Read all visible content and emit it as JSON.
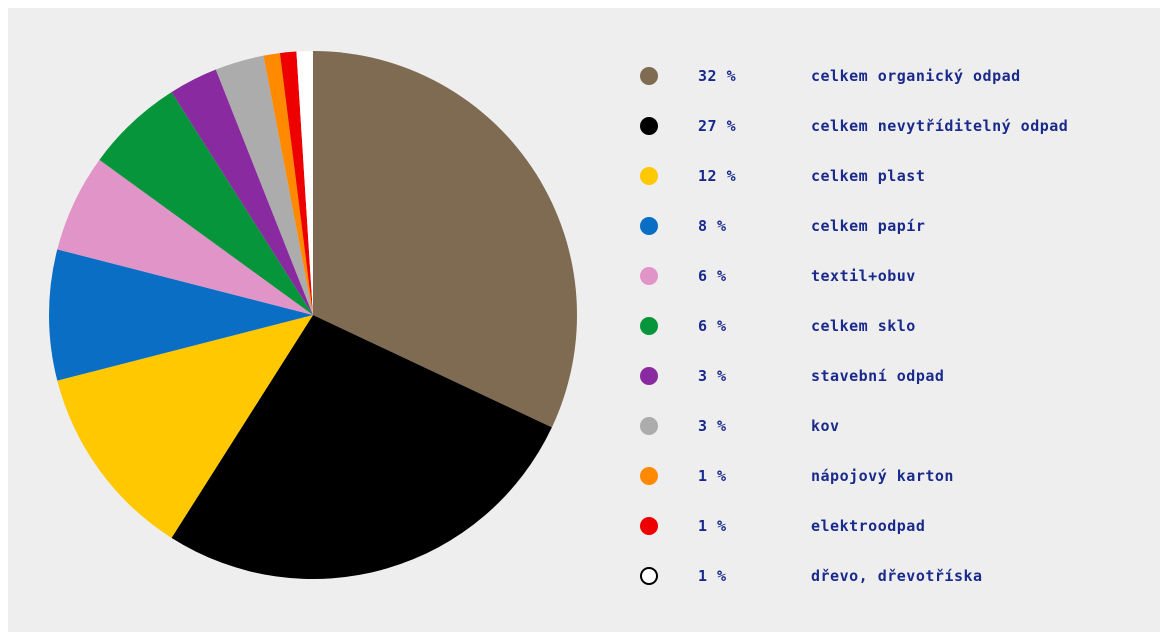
{
  "chart_data": {
    "type": "pie",
    "title": "",
    "slices": [
      {
        "value_pct": 32,
        "value_label": "32 %",
        "label": "celkem organický odpad",
        "color": "#7f6a52"
      },
      {
        "value_pct": 27,
        "value_label": "27 %",
        "label": "celkem nevytříditelný odpad",
        "color": "#000000"
      },
      {
        "value_pct": 12,
        "value_label": "12 %",
        "label": "celkem plast",
        "color": "#ffc800"
      },
      {
        "value_pct": 8,
        "value_label": "8 %",
        "label": "celkem papír",
        "color": "#0a6ec4"
      },
      {
        "value_pct": 6,
        "value_label": "6 %",
        "label": "textil+obuv",
        "color": "#e194c8"
      },
      {
        "value_pct": 6,
        "value_label": "6 %",
        "label": "celkem sklo",
        "color": "#06953a"
      },
      {
        "value_pct": 3,
        "value_label": "3 %",
        "label": "stavební odpad",
        "color": "#8a2aa0"
      },
      {
        "value_pct": 3,
        "value_label": "3 %",
        "label": "kov",
        "color": "#acacac"
      },
      {
        "value_pct": 1,
        "value_label": "1 %",
        "label": "nápojový karton",
        "color": "#ff8a00"
      },
      {
        "value_pct": 1,
        "value_label": "1 %",
        "label": "elektroodpad",
        "color": "#ee0000"
      },
      {
        "value_pct": 1,
        "value_label": "1 %",
        "label": "dřevo, dřevotříska",
        "color": "#ffffff"
      }
    ],
    "legend_placement": "right",
    "start_angle": "top, clockwise"
  },
  "colors": {
    "background": "#eeeeee",
    "legend_text": "#1a2a8c"
  }
}
